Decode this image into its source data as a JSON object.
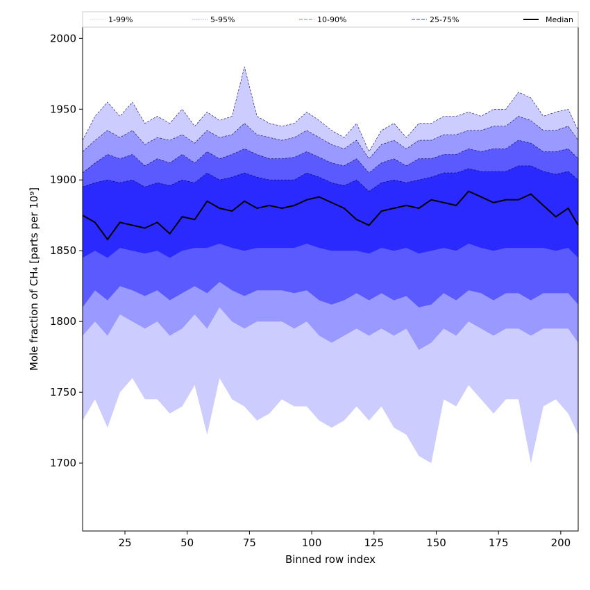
{
  "chart_data": {
    "type": "area",
    "xlabel": "Binned row index",
    "ylabel": "Mole fraction of CH₄ [parts per 10⁹]",
    "xlim": [
      8,
      207
    ],
    "ylim": [
      1652,
      2008
    ],
    "x_ticks": [
      25,
      50,
      75,
      100,
      125,
      150,
      175,
      200
    ],
    "y_ticks": [
      1700,
      1750,
      1800,
      1850,
      1900,
      1950,
      2000
    ],
    "grid": false,
    "legend_position": "top",
    "colors": {
      "band_1_99": "#ccccff",
      "band_5_95": "#9999ff",
      "band_10_90": "#5a5aff",
      "band_25_75": "#2a2aff",
      "median": "#000000"
    },
    "legend": [
      {
        "label": "1-99%",
        "style": "dotted",
        "color": "#c8c8ff"
      },
      {
        "label": "5-95%",
        "style": "dotted",
        "color": "#9999ff"
      },
      {
        "label": "10-90%",
        "style": "dashed",
        "color": "#7777ff"
      },
      {
        "label": "25-75%",
        "style": "dashed",
        "color": "#3333ee"
      },
      {
        "label": "Median",
        "style": "solid",
        "color": "#000000"
      }
    ],
    "x": [
      8,
      13,
      18,
      23,
      28,
      33,
      38,
      43,
      48,
      53,
      58,
      63,
      68,
      73,
      78,
      83,
      88,
      93,
      98,
      103,
      108,
      113,
      118,
      123,
      128,
      133,
      138,
      143,
      148,
      153,
      158,
      163,
      168,
      173,
      178,
      183,
      188,
      193,
      198,
      203,
      207
    ],
    "series": [
      {
        "name": "Median",
        "values": [
          1875,
          1870,
          1858,
          1870,
          1868,
          1866,
          1870,
          1862,
          1874,
          1872,
          1885,
          1880,
          1878,
          1885,
          1880,
          1882,
          1880,
          1882,
          1886,
          1888,
          1884,
          1880,
          1872,
          1868,
          1878,
          1880,
          1882,
          1880,
          1886,
          1884,
          1882,
          1892,
          1888,
          1884,
          1886,
          1886,
          1890,
          1882,
          1874,
          1880,
          1868
        ]
      },
      {
        "name": "1-99%",
        "values_low": [
          1730,
          1745,
          1725,
          1750,
          1760,
          1745,
          1745,
          1735,
          1740,
          1755,
          1720,
          1760,
          1745,
          1740,
          1730,
          1735,
          1745,
          1740,
          1740,
          1730,
          1725,
          1730,
          1740,
          1730,
          1740,
          1725,
          1720,
          1705,
          1700,
          1745,
          1740,
          1755,
          1745,
          1735,
          1745,
          1745,
          1700,
          1740,
          1745,
          1735,
          1720
        ],
        "values_high": [
          1928,
          1945,
          1955,
          1945,
          1955,
          1940,
          1945,
          1940,
          1950,
          1938,
          1948,
          1942,
          1945,
          1980,
          1945,
          1940,
          1938,
          1940,
          1948,
          1942,
          1935,
          1930,
          1940,
          1920,
          1935,
          1940,
          1930,
          1940,
          1940,
          1945,
          1945,
          1948,
          1945,
          1950,
          1950,
          1962,
          1958,
          1945,
          1948,
          1950,
          1935
        ]
      },
      {
        "name": "5-95%",
        "values_low": [
          1790,
          1800,
          1790,
          1805,
          1800,
          1795,
          1800,
          1790,
          1795,
          1805,
          1795,
          1810,
          1800,
          1795,
          1800,
          1800,
          1800,
          1795,
          1800,
          1790,
          1785,
          1790,
          1795,
          1790,
          1795,
          1790,
          1795,
          1780,
          1785,
          1795,
          1790,
          1800,
          1795,
          1790,
          1795,
          1795,
          1790,
          1795,
          1795,
          1795,
          1785
        ],
        "values_high": [
          1920,
          1928,
          1935,
          1930,
          1935,
          1925,
          1930,
          1928,
          1932,
          1926,
          1935,
          1930,
          1932,
          1940,
          1932,
          1930,
          1928,
          1930,
          1935,
          1930,
          1925,
          1922,
          1928,
          1915,
          1925,
          1928,
          1922,
          1928,
          1928,
          1932,
          1932,
          1935,
          1935,
          1938,
          1938,
          1945,
          1942,
          1935,
          1935,
          1938,
          1928
        ]
      },
      {
        "name": "10-90%",
        "values_low": [
          1810,
          1822,
          1815,
          1825,
          1822,
          1818,
          1822,
          1815,
          1820,
          1825,
          1820,
          1828,
          1822,
          1818,
          1822,
          1822,
          1822,
          1820,
          1822,
          1815,
          1812,
          1815,
          1820,
          1815,
          1820,
          1815,
          1818,
          1810,
          1812,
          1820,
          1815,
          1822,
          1820,
          1815,
          1820,
          1820,
          1815,
          1820,
          1820,
          1820,
          1812
        ],
        "values_high": [
          1905,
          1912,
          1918,
          1915,
          1918,
          1910,
          1915,
          1912,
          1918,
          1912,
          1920,
          1915,
          1918,
          1922,
          1918,
          1915,
          1915,
          1916,
          1920,
          1916,
          1912,
          1910,
          1915,
          1905,
          1912,
          1915,
          1910,
          1915,
          1915,
          1918,
          1918,
          1922,
          1920,
          1922,
          1922,
          1928,
          1926,
          1920,
          1920,
          1922,
          1915
        ]
      },
      {
        "name": "25-75%",
        "values_low": [
          1845,
          1850,
          1845,
          1852,
          1850,
          1848,
          1850,
          1845,
          1850,
          1852,
          1852,
          1855,
          1852,
          1850,
          1852,
          1852,
          1852,
          1852,
          1855,
          1852,
          1850,
          1850,
          1850,
          1848,
          1852,
          1850,
          1852,
          1848,
          1850,
          1852,
          1850,
          1855,
          1852,
          1850,
          1852,
          1852,
          1852,
          1852,
          1850,
          1852,
          1845
        ],
        "values_high": [
          1895,
          1898,
          1900,
          1898,
          1900,
          1895,
          1898,
          1896,
          1900,
          1898,
          1905,
          1900,
          1902,
          1905,
          1902,
          1900,
          1900,
          1900,
          1905,
          1902,
          1898,
          1896,
          1900,
          1892,
          1898,
          1900,
          1898,
          1900,
          1902,
          1905,
          1905,
          1908,
          1906,
          1906,
          1906,
          1910,
          1910,
          1906,
          1904,
          1906,
          1900
        ]
      }
    ]
  }
}
